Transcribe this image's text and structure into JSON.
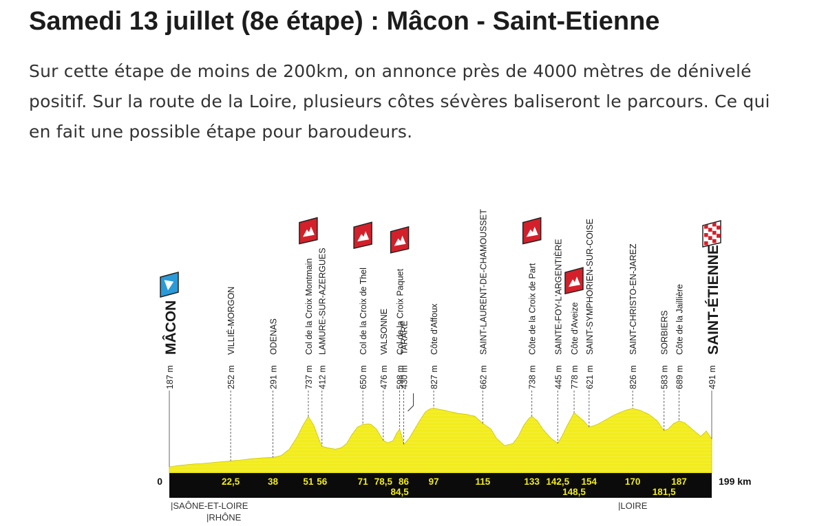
{
  "header": {
    "title": "Samedi 13 juillet (8e étape) : Mâcon - Saint-Etienne",
    "description": "Sur cette étape de moins de 200km, on annonce près de 4000 mètres de dénivelé positif. Sur la route de la Loire, plusieurs côtes sévères baliseront le parcours. Ce qui en fait une possible étape pour baroudeurs."
  },
  "colors": {
    "profile_fill": "#f2ec1c",
    "band": "#0b0b0b",
    "km_label": "#f2ec1c",
    "climb_marker": "#d4202a",
    "start_marker": "#2a9bd8"
  },
  "profile": {
    "total_label": "199 km",
    "zero_label": "0",
    "regions": [
      {
        "km": 0,
        "label": "|SAÔNE-ET-LOIRE"
      },
      {
        "km": 17,
        "label": "|RHÔNE"
      },
      {
        "km": 165,
        "label": "|LOIRE"
      }
    ],
    "points": [
      {
        "km": 0,
        "alt": "187 m",
        "name": "MÂCON",
        "type": "start"
      },
      {
        "km": 22.5,
        "km_label": "22,5",
        "alt": "252 m",
        "name": "VILLIÉ-MORGON"
      },
      {
        "km": 38,
        "km_label": "38",
        "alt": "291 m",
        "name": "ODENAS"
      },
      {
        "km": 51,
        "km_label": "51",
        "alt": "737 m",
        "name": "Col de la Croix Montmain",
        "type": "climb"
      },
      {
        "km": 56,
        "km_label": "56",
        "alt": "412 m",
        "name": "LAMURE-SUR-AZERGUES"
      },
      {
        "km": 71,
        "km_label": "71",
        "alt": "650 m",
        "name": "Col de la Croix de Thel",
        "type": "climb"
      },
      {
        "km": 78.5,
        "km_label": "78,5",
        "alt": "476 m",
        "name": "VALSONNE"
      },
      {
        "km": 84.5,
        "km_label": "84,5",
        "alt": "598 m",
        "name": "Col de la Croix Paquet",
        "type": "climb",
        "low": true
      },
      {
        "km": 86,
        "km_label": "86",
        "alt": "430 m",
        "name": "TARARE"
      },
      {
        "km": 97,
        "km_label": "97",
        "alt": "827 m",
        "name": "Côte d'Affoux"
      },
      {
        "km": 115,
        "km_label": "115",
        "alt": "662 m",
        "name": "SAINT-LAURENT-DE-CHAMOUSSET"
      },
      {
        "km": 133,
        "km_label": "133",
        "alt": "738 m",
        "name": "Côte de la Croix de Part",
        "type": "climb"
      },
      {
        "km": 142.5,
        "km_label": "142,5",
        "alt": "445 m",
        "name": "SAINTE-FOY-L'ARGENTIÈRE"
      },
      {
        "km": 148.5,
        "km_label": "148,5",
        "alt": "778 m",
        "name": "Côte d'Aveize",
        "type": "climb",
        "low": true
      },
      {
        "km": 154,
        "km_label": "154",
        "alt": "621 m",
        "name": "SAINT-SYMPHORIEN-SUR-COISE"
      },
      {
        "km": 170,
        "km_label": "170",
        "alt": "826 m",
        "name": "SAINT-CHRISTO-EN-JAREZ"
      },
      {
        "km": 181.5,
        "km_label": "181,5",
        "alt": "583 m",
        "name": "SORBIERS",
        "low": true
      },
      {
        "km": 187,
        "km_label": "187",
        "alt": "689 m",
        "name": "Côte de la Jaillière"
      },
      {
        "km": 199,
        "alt": "491 m",
        "name": "SAINT-ÉTIENNE",
        "type": "finish"
      }
    ],
    "elevation": [
      [
        0,
        187
      ],
      [
        3,
        200
      ],
      [
        6,
        210
      ],
      [
        9,
        218
      ],
      [
        12,
        225
      ],
      [
        15,
        232
      ],
      [
        18,
        240
      ],
      [
        22.5,
        252
      ],
      [
        26,
        262
      ],
      [
        30,
        275
      ],
      [
        34,
        285
      ],
      [
        38,
        291
      ],
      [
        41,
        310
      ],
      [
        44,
        380
      ],
      [
        47,
        520
      ],
      [
        49,
        640
      ],
      [
        51,
        737
      ],
      [
        53,
        640
      ],
      [
        55,
        480
      ],
      [
        56,
        412
      ],
      [
        58,
        395
      ],
      [
        61,
        380
      ],
      [
        63,
        395
      ],
      [
        65,
        440
      ],
      [
        67,
        540
      ],
      [
        69,
        620
      ],
      [
        71,
        650
      ],
      [
        73,
        655
      ],
      [
        74,
        650
      ],
      [
        76,
        600
      ],
      [
        78.5,
        476
      ],
      [
        80,
        450
      ],
      [
        82,
        470
      ],
      [
        83.5,
        560
      ],
      [
        84.5,
        598
      ],
      [
        85.3,
        520
      ],
      [
        86,
        430
      ],
      [
        88,
        500
      ],
      [
        90,
        600
      ],
      [
        92,
        700
      ],
      [
        94,
        790
      ],
      [
        96,
        825
      ],
      [
        97,
        827
      ],
      [
        100,
        810
      ],
      [
        103,
        790
      ],
      [
        106,
        770
      ],
      [
        109,
        760
      ],
      [
        112,
        740
      ],
      [
        115,
        662
      ],
      [
        118,
        600
      ],
      [
        120,
        500
      ],
      [
        123,
        420
      ],
      [
        126,
        440
      ],
      [
        128,
        520
      ],
      [
        130,
        640
      ],
      [
        132,
        720
      ],
      [
        133,
        738
      ],
      [
        135,
        690
      ],
      [
        137,
        600
      ],
      [
        140,
        500
      ],
      [
        142.5,
        445
      ],
      [
        144,
        520
      ],
      [
        146,
        640
      ],
      [
        148.5,
        778
      ],
      [
        150,
        740
      ],
      [
        152,
        690
      ],
      [
        154,
        621
      ],
      [
        157,
        650
      ],
      [
        160,
        700
      ],
      [
        163,
        750
      ],
      [
        166,
        790
      ],
      [
        168,
        810
      ],
      [
        170,
        826
      ],
      [
        173,
        800
      ],
      [
        176,
        760
      ],
      [
        179,
        690
      ],
      [
        181.5,
        583
      ],
      [
        183,
        600
      ],
      [
        185,
        660
      ],
      [
        187,
        689
      ],
      [
        189,
        670
      ],
      [
        191,
        620
      ],
      [
        193,
        570
      ],
      [
        195,
        520
      ],
      [
        197,
        580
      ],
      [
        199,
        491
      ]
    ]
  }
}
